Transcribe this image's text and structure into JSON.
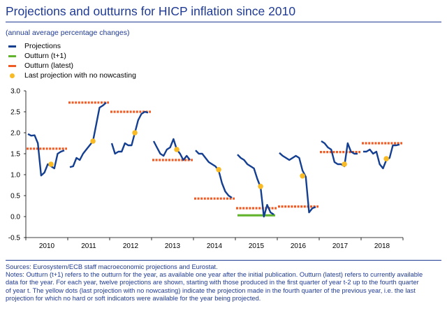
{
  "title": "Projections and outturns for HICP inflation since 2010",
  "subtitle": "(annual average percentage changes)",
  "legend": [
    {
      "label": "Projections",
      "color": "#143f91",
      "kind": "line"
    },
    {
      "label": "Outturn (t+1)",
      "color": "#62b42d",
      "kind": "line"
    },
    {
      "label": "Outturn (latest)",
      "color": "#f15a22",
      "kind": "line"
    },
    {
      "label": "Last projection with no nowcasting",
      "color": "#f8bb26",
      "kind": "dot"
    }
  ],
  "sources": "Sources: Eurosystem/ECB staff macroeconomic projections and Eurostat.",
  "notes": "Notes: Outturn (t+1) refers to the outturn for the year, as available one year after the initial publication. Outturn (latest) refers to currently available data for the year. For each year, twelve projections are shown, starting with those produced in the first quarter of year t-2 up to the fourth quarter of year t. The yellow dots (last projection with no nowcasting) indicate the projection made in the fourth quarter of the previous year, i.e. the last projection for which no hard or soft indicators were available for the year being projected.",
  "chart_data": {
    "type": "line",
    "title": "Projections and outturns for HICP inflation since 2010",
    "ylabel": "",
    "xlabel": "",
    "ylim": [
      -0.5,
      3.0
    ],
    "yticks": [
      "3.0",
      "2.5",
      "2.0",
      "1.5",
      "1.0",
      "0.5",
      "0.0",
      "-0.5"
    ],
    "categories": [
      "2010",
      "2011",
      "2012",
      "2013",
      "2014",
      "2015",
      "2016",
      "2017",
      "2018"
    ],
    "colors": {
      "projections": "#143f91",
      "outturn_t1": "#62b42d",
      "outturn_latest": "#f15a22",
      "last_no_nowcasting": "#f8bb26"
    },
    "series": [
      {
        "name": "Projections",
        "values": [
          [
            1.97,
            1.93,
            1.94,
            1.75,
            0.98,
            1.05,
            1.25,
            1.2,
            1.15,
            1.5,
            1.55,
            1.58
          ],
          [
            1.18,
            1.2,
            1.4,
            1.35,
            1.5,
            1.6,
            1.7,
            1.8,
            2.2,
            2.6,
            2.65,
            2.72
          ],
          [
            1.75,
            1.5,
            1.55,
            1.55,
            1.75,
            1.7,
            1.7,
            2.0,
            2.3,
            2.45,
            2.5,
            2.48
          ],
          [
            1.8,
            1.65,
            1.5,
            1.45,
            1.6,
            1.65,
            1.85,
            1.6,
            1.5,
            1.35,
            1.45,
            1.35
          ],
          [
            1.58,
            1.5,
            1.5,
            1.4,
            1.3,
            1.25,
            1.2,
            1.1,
            0.8,
            0.6,
            0.5,
            0.45
          ],
          [
            1.48,
            1.4,
            1.35,
            1.25,
            1.2,
            1.15,
            0.9,
            0.7,
            0.0,
            0.28,
            0.1,
            0.05
          ],
          [
            1.52,
            1.45,
            1.4,
            1.35,
            1.4,
            1.45,
            1.4,
            1.1,
            0.95,
            0.1,
            0.2,
            0.23
          ],
          [
            1.8,
            1.75,
            1.65,
            1.6,
            1.3,
            1.25,
            1.25,
            1.2,
            1.75,
            1.55,
            1.5,
            1.5
          ],
          [
            1.55,
            1.55,
            1.6,
            1.5,
            1.55,
            1.25,
            1.15,
            1.35,
            1.4,
            1.7,
            1.7,
            1.72
          ]
        ]
      },
      {
        "name": "Outturn (t+1)",
        "values": [
          null,
          null,
          null,
          null,
          null,
          0.03,
          null,
          null,
          null
        ]
      },
      {
        "name": "Outturn (latest)",
        "values": [
          1.62,
          2.72,
          2.5,
          1.35,
          0.43,
          0.2,
          0.24,
          1.54,
          1.75
        ]
      },
      {
        "name": "Last projection with no nowcasting",
        "values": [
          1.25,
          1.8,
          2.0,
          1.6,
          1.12,
          0.72,
          0.97,
          1.25,
          1.38
        ]
      }
    ]
  }
}
